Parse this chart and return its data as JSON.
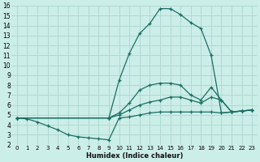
{
  "xlabel": "Humidex (Indice chaleur)",
  "bg_color": "#cceee8",
  "grid_color": "#b0d8d2",
  "line_color": "#1a6e64",
  "xlim": [
    -0.5,
    23.5
  ],
  "ylim": [
    2,
    16
  ],
  "xticks": [
    0,
    1,
    2,
    3,
    4,
    5,
    6,
    7,
    8,
    9,
    10,
    11,
    12,
    13,
    14,
    15,
    16,
    17,
    18,
    19,
    20,
    21,
    22,
    23
  ],
  "yticks": [
    2,
    3,
    4,
    5,
    6,
    7,
    8,
    9,
    10,
    11,
    12,
    13,
    14,
    15,
    16
  ],
  "series": [
    {
      "x": [
        0,
        9,
        10,
        11,
        12,
        13,
        14,
        15,
        16,
        17,
        18,
        19,
        20,
        21,
        22,
        23
      ],
      "y": [
        4.7,
        4.7,
        8.5,
        11.2,
        13.2,
        14.2,
        15.7,
        15.7,
        15.1,
        14.3,
        13.7,
        11.0,
        5.2,
        5.3,
        5.4,
        5.5
      ]
    },
    {
      "x": [
        0,
        9,
        10,
        11,
        12,
        13,
        14,
        15,
        16,
        17,
        18,
        19,
        20,
        21,
        22,
        23
      ],
      "y": [
        4.7,
        4.7,
        5.2,
        6.2,
        7.5,
        8.0,
        8.2,
        8.2,
        8.0,
        7.0,
        6.5,
        7.8,
        6.5,
        5.3,
        5.4,
        5.5
      ]
    },
    {
      "x": [
        0,
        9,
        10,
        11,
        12,
        13,
        14,
        15,
        16,
        17,
        18,
        19,
        20,
        21,
        22,
        23
      ],
      "y": [
        4.7,
        4.7,
        5.0,
        5.5,
        6.0,
        6.3,
        6.5,
        6.8,
        6.8,
        6.5,
        6.2,
        6.8,
        6.5,
        5.3,
        5.4,
        5.5
      ]
    },
    {
      "x": [
        0,
        1,
        2,
        3,
        4,
        5,
        6,
        7,
        8,
        9,
        10,
        11,
        12,
        13,
        14,
        15,
        16,
        17,
        18,
        19,
        20,
        21,
        22,
        23
      ],
      "y": [
        4.7,
        4.6,
        4.3,
        3.9,
        3.5,
        3.0,
        2.8,
        2.7,
        2.6,
        2.5,
        4.7,
        4.8,
        5.0,
        5.2,
        5.3,
        5.3,
        5.3,
        5.3,
        5.3,
        5.3,
        5.2,
        5.3,
        5.4,
        5.5
      ]
    }
  ]
}
